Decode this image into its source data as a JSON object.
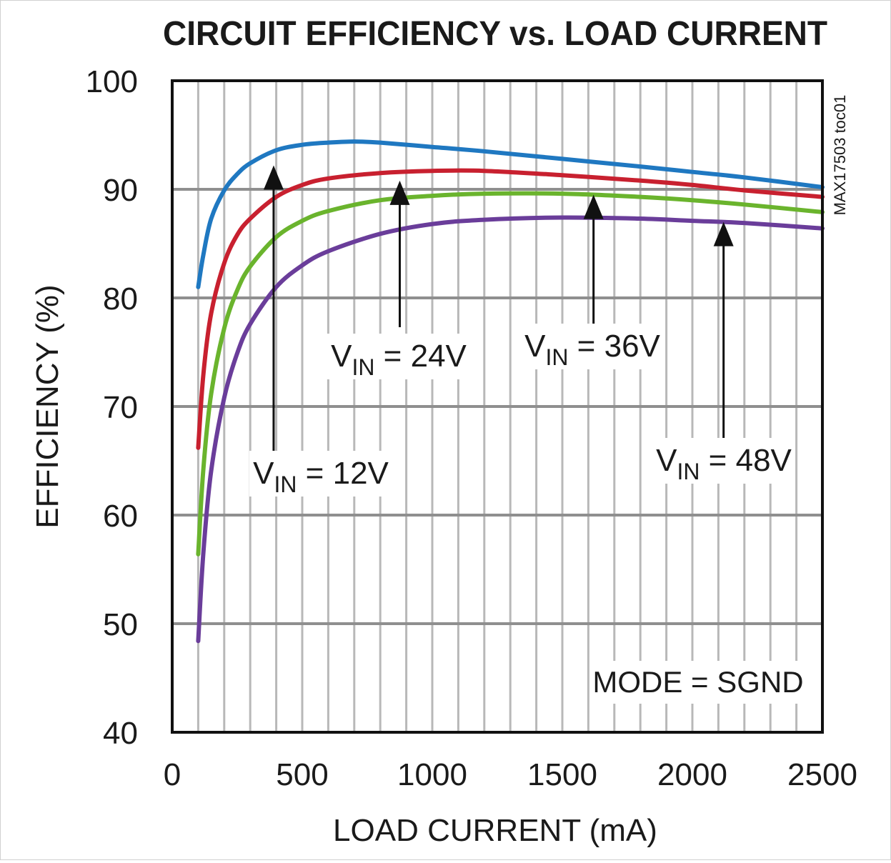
{
  "chart_data": {
    "type": "line",
    "title": "CIRCUIT EFFICIENCY vs. LOAD CURRENT",
    "xlabel": "LOAD CURRENT (mA)",
    "ylabel": "EFFICIENCY (%)",
    "xlim": [
      0,
      2500
    ],
    "ylim": [
      40,
      100
    ],
    "x_ticks": [
      0,
      500,
      1000,
      1500,
      2000,
      2500
    ],
    "y_ticks": [
      40,
      50,
      60,
      70,
      80,
      90,
      100
    ],
    "grid": true,
    "side_label": "MAX17503 toc01",
    "note": "MODE = SGND",
    "series": [
      {
        "name": "VIN = 12V",
        "label_main": "V",
        "label_sub": "IN",
        "label_rest": " = 12V",
        "color": "#1f78c1",
        "x": [
          100,
          120,
          150,
          200,
          250,
          300,
          400,
          500,
          600,
          700,
          800,
          1000,
          1200,
          1500,
          1800,
          2000,
          2200,
          2500
        ],
        "y": [
          81,
          84,
          87.3,
          89.9,
          91.4,
          92.4,
          93.6,
          94.1,
          94.3,
          94.4,
          94.3,
          93.9,
          93.5,
          92.8,
          92.1,
          91.6,
          91.1,
          90.2
        ]
      },
      {
        "name": "VIN = 24V",
        "label_main": "V",
        "label_sub": "IN",
        "label_rest": " = 24V",
        "color": "#c8202f",
        "x": [
          100,
          120,
          150,
          200,
          250,
          300,
          400,
          500,
          600,
          800,
          1000,
          1200,
          1500,
          1800,
          2000,
          2200,
          2500
        ],
        "y": [
          66.2,
          73,
          78.6,
          83.2,
          85.8,
          87.3,
          89.3,
          90.4,
          91,
          91.5,
          91.7,
          91.7,
          91.3,
          90.8,
          90.4,
          89.9,
          89.3
        ]
      },
      {
        "name": "VIN = 36V",
        "label_main": "V",
        "label_sub": "IN",
        "label_rest": " = 36V",
        "color": "#6ab42d",
        "x": [
          100,
          120,
          150,
          200,
          250,
          300,
          400,
          500,
          600,
          800,
          1000,
          1200,
          1500,
          1800,
          2000,
          2200,
          2500
        ],
        "y": [
          56.4,
          64.3,
          71.2,
          77.2,
          80.7,
          82.9,
          85.6,
          87.1,
          88,
          89,
          89.4,
          89.6,
          89.6,
          89.3,
          89,
          88.6,
          87.9
        ]
      },
      {
        "name": "VIN = 48V",
        "label_main": "V",
        "label_sub": "IN",
        "label_rest": " = 48V",
        "color": "#6a3d9a",
        "x": [
          100,
          120,
          150,
          200,
          250,
          300,
          400,
          500,
          600,
          800,
          1000,
          1200,
          1500,
          1800,
          2000,
          2200,
          2500
        ],
        "y": [
          48.4,
          56.6,
          64.1,
          70.8,
          74.9,
          77.6,
          81,
          83,
          84.3,
          85.9,
          86.8,
          87.2,
          87.4,
          87.3,
          87.1,
          86.9,
          86.4
        ]
      }
    ],
    "annotations": [
      {
        "series": "VIN = 12V",
        "arrow_x": 390,
        "arrow_tip_y": 92.2,
        "arrow_base_y": 64.5
      },
      {
        "series": "VIN = 24V",
        "arrow_x": 875,
        "arrow_tip_y": 90.8,
        "arrow_base_y": 77.3
      },
      {
        "series": "VIN = 36V",
        "arrow_x": 1620,
        "arrow_tip_y": 89.5,
        "arrow_base_y": 77.0
      },
      {
        "series": "VIN = 48V",
        "arrow_x": 2120,
        "arrow_tip_y": 87.0,
        "arrow_base_y": 66.3
      }
    ]
  }
}
